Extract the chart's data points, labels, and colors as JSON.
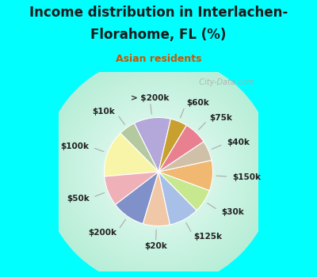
{
  "labels": [
    "> $200k",
    "$10k",
    "$100k",
    "$50k",
    "$200k",
    "$20k",
    "$125k",
    "$30k",
    "$150k",
    "$40k",
    "$75k",
    "$60k"
  ],
  "values": [
    11,
    5,
    14,
    9,
    10,
    8,
    9,
    7,
    9,
    6,
    7,
    5
  ],
  "colors": [
    "#b3a8d9",
    "#b5c9a0",
    "#f9f5a8",
    "#f0b0b8",
    "#8090c8",
    "#f0c8a8",
    "#a8c0e8",
    "#c8e890",
    "#f0b870",
    "#d0c0a8",
    "#e88090",
    "#c8a030"
  ],
  "title_line1": "Income distribution in Interlachen-",
  "title_line2": "Florahome, FL (%)",
  "subtitle": "Asian residents",
  "title_color": "#1a1a1a",
  "subtitle_color": "#cc5500",
  "bg_cyan": "#00ffff",
  "bg_chart_outer": "#b8eed8",
  "bg_chart_inner": "#f0fdf8",
  "watermark": "  City-Data.com",
  "startangle": 77,
  "label_fontsize": 7.5,
  "title_fontsize": 12,
  "subtitle_fontsize": 9
}
